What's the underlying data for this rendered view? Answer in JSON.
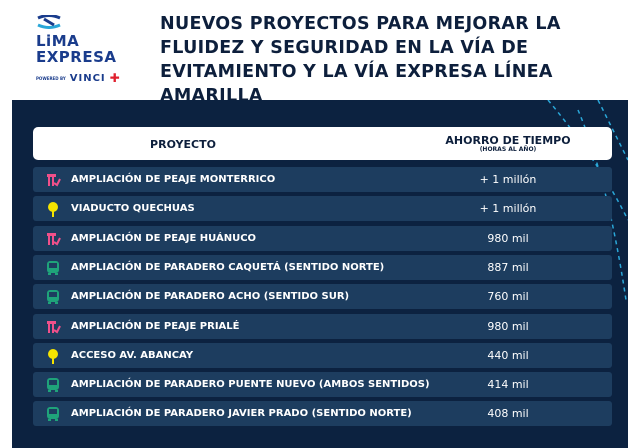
{
  "logo": {
    "line1": "LiMA",
    "line2": "EXPRESA",
    "powered": "POWERED BY",
    "vinci": "VINCI"
  },
  "title": "NUEVOS PROYECTOS PARA MEJORAR LA FLUIDEZ Y SEGURIDAD EN LA VÍA DE EVITAMIENTO Y LA VÍA EXPRESA LÍNEA AMARILLA",
  "table": {
    "col1": "PROYECTO",
    "col2": "AHORRO DE TIEMPO",
    "col2_sub": "(HORAS AL AÑO)",
    "rows": [
      {
        "icon": "toll",
        "name": "AMPLIACIÓN DE PEAJE MONTERRICO",
        "value": "+ 1 millón"
      },
      {
        "icon": "pin",
        "name": "VIADUCTO QUECHUAS",
        "value": "+ 1 millón"
      },
      {
        "icon": "toll",
        "name": "AMPLIACIÓN DE PEAJE HUÁNUCO",
        "value": "980 mil"
      },
      {
        "icon": "bus",
        "name": "AMPLIACIÓN DE PARADERO CAQUETÁ (SENTIDO NORTE)",
        "value": "887 mil"
      },
      {
        "icon": "bus",
        "name": "AMPLIACIÓN DE PARADERO ACHO (SENTIDO SUR)",
        "value": "760 mil"
      },
      {
        "icon": "toll",
        "name": "AMPLIACIÓN DE PEAJE PRIALÉ",
        "value": "980 mil"
      },
      {
        "icon": "pin",
        "name": "ACCESO AV. ABANCAY",
        "value": "440 mil"
      },
      {
        "icon": "bus",
        "name": "AMPLIACIÓN DE PARADERO PUENTE NUEVO (AMBOS SENTIDOS)",
        "value": "414 mil"
      },
      {
        "icon": "bus",
        "name": "AMPLIACIÓN DE PARADERO JAVIER PRADO (SENTIDO NORTE)",
        "value": "408 mil"
      }
    ]
  },
  "colors": {
    "toll": "#f0508a",
    "pin": "#f5e400",
    "bus": "#1fa37a",
    "panel": "#0c2240",
    "row": "#1d3d5f"
  }
}
